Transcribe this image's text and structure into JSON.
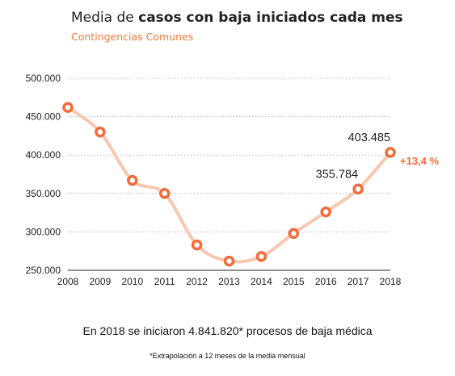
{
  "chart_data": {
    "type": "line",
    "title_prefix": "Media de",
    "title_bold": "casos con baja iniciados cada mes",
    "subtitle": "Contingencias Comunes",
    "xlabel": "",
    "ylabel": "",
    "x": [
      2008,
      2009,
      2010,
      2011,
      2012,
      2013,
      2014,
      2015,
      2016,
      2017,
      2018
    ],
    "values": [
      462000,
      430000,
      367000,
      350000,
      283000,
      262000,
      268000,
      298000,
      326000,
      355784,
      403485
    ],
    "ylim": [
      250000,
      500000
    ],
    "y_ticks": [
      {
        "value": 250000,
        "label": "250.000"
      },
      {
        "value": 300000,
        "label": "300.000"
      },
      {
        "value": 350000,
        "label": "350.000"
      },
      {
        "value": 400000,
        "label": "400.000"
      },
      {
        "value": 450000,
        "label": "450.000"
      },
      {
        "value": 500000,
        "label": "500.000"
      }
    ],
    "x_tick_labels": [
      "2008",
      "2009",
      "2010",
      "2011",
      "2012",
      "2013",
      "2014",
      "2015",
      "2016",
      "2017",
      "2018"
    ],
    "data_labels": [
      {
        "x": 2017,
        "text": "355.784"
      },
      {
        "x": 2018,
        "text": "403.485"
      }
    ],
    "change_annotation": {
      "x": 2018,
      "text": "+13,4 %"
    },
    "grid": true,
    "grid_style": "dotted",
    "line_color": "#f9c6ae",
    "marker_color": "#f26b3a",
    "accent_color": "#f07a3c"
  },
  "summary": "En 2018 se iniciaron 4.841.820* procesos de baja médica",
  "footnote": "*Extrapolación a 12 meses de la media mensual"
}
